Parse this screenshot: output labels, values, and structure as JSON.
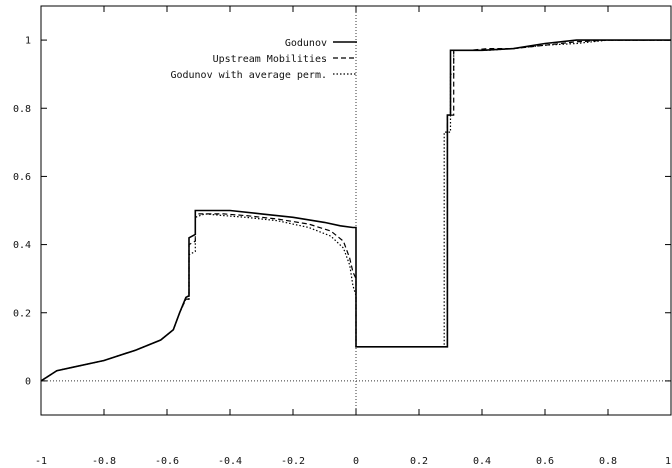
{
  "chart_data": {
    "type": "line",
    "title": "",
    "xlabel": "",
    "ylabel": "",
    "xlim": [
      -1,
      1
    ],
    "ylim": [
      -0.1,
      1.1
    ],
    "xticks": [
      -1,
      -0.8,
      -0.6,
      -0.4,
      -0.2,
      0,
      0.2,
      0.4,
      0.6,
      0.8,
      1
    ],
    "xtick_labels": [
      "-1",
      "-0.8",
      "-0.6",
      "-0.4",
      "-0.2",
      "0",
      "0.2",
      "0.4",
      "0.6",
      "0.8",
      "1"
    ],
    "yticks": [
      0,
      0.2,
      0.4,
      0.6,
      0.8,
      1
    ],
    "ytick_labels": [
      "0",
      "0.2",
      "0.4",
      "0.6",
      "0.8",
      "1"
    ],
    "grid": false,
    "zero_lines": true,
    "legend_position": "top-left inside",
    "series": [
      {
        "name": "Godunov",
        "style": "solid",
        "points": [
          [
            -1,
            0
          ],
          [
            -0.95,
            0.03
          ],
          [
            -0.9,
            0.04
          ],
          [
            -0.8,
            0.06
          ],
          [
            -0.7,
            0.09
          ],
          [
            -0.62,
            0.12
          ],
          [
            -0.58,
            0.15
          ],
          [
            -0.56,
            0.2
          ],
          [
            -0.54,
            0.245
          ],
          [
            -0.53,
            0.25
          ],
          [
            -0.53,
            0.42
          ],
          [
            -0.51,
            0.43
          ],
          [
            -0.51,
            0.5
          ],
          [
            -0.45,
            0.5
          ],
          [
            -0.4,
            0.5
          ],
          [
            -0.3,
            0.49
          ],
          [
            -0.2,
            0.48
          ],
          [
            -0.1,
            0.465
          ],
          [
            -0.05,
            0.455
          ],
          [
            -0.01,
            0.45
          ],
          [
            0,
            0.45
          ],
          [
            0,
            0.1
          ],
          [
            0.1,
            0.1
          ],
          [
            0.27,
            0.1
          ],
          [
            0.29,
            0.1
          ],
          [
            0.29,
            0.78
          ],
          [
            0.3,
            0.78
          ],
          [
            0.3,
            0.97
          ],
          [
            0.35,
            0.97
          ],
          [
            0.4,
            0.97
          ],
          [
            0.5,
            0.975
          ],
          [
            0.6,
            0.99
          ],
          [
            0.7,
            1.0
          ],
          [
            0.8,
            1.0
          ],
          [
            0.9,
            1.0
          ],
          [
            1,
            1.0
          ]
        ]
      },
      {
        "name": "Upstream Mobilities",
        "style": "dashed",
        "points": [
          [
            -1,
            0
          ],
          [
            -0.95,
            0.03
          ],
          [
            -0.9,
            0.04
          ],
          [
            -0.8,
            0.06
          ],
          [
            -0.7,
            0.09
          ],
          [
            -0.62,
            0.12
          ],
          [
            -0.58,
            0.15
          ],
          [
            -0.56,
            0.2
          ],
          [
            -0.54,
            0.24
          ],
          [
            -0.53,
            0.24
          ],
          [
            -0.53,
            0.4
          ],
          [
            -0.51,
            0.41
          ],
          [
            -0.51,
            0.49
          ],
          [
            -0.48,
            0.49
          ],
          [
            -0.42,
            0.49
          ],
          [
            -0.35,
            0.485
          ],
          [
            -0.25,
            0.475
          ],
          [
            -0.15,
            0.46
          ],
          [
            -0.08,
            0.44
          ],
          [
            -0.04,
            0.41
          ],
          [
            -0.02,
            0.36
          ],
          [
            -0.01,
            0.32
          ],
          [
            0,
            0.3
          ],
          [
            0,
            0.1
          ],
          [
            0.29,
            0.1
          ],
          [
            0.29,
            0.78
          ],
          [
            0.31,
            0.78
          ],
          [
            0.31,
            0.97
          ],
          [
            0.36,
            0.97
          ],
          [
            0.42,
            0.975
          ],
          [
            0.5,
            0.975
          ],
          [
            0.6,
            0.985
          ],
          [
            0.7,
            0.995
          ],
          [
            0.8,
            1.0
          ],
          [
            1,
            1.0
          ]
        ]
      },
      {
        "name": "Godunov with average perm.",
        "style": "dotted",
        "points": [
          [
            -1,
            0
          ],
          [
            -0.95,
            0.03
          ],
          [
            -0.9,
            0.04
          ],
          [
            -0.8,
            0.06
          ],
          [
            -0.7,
            0.09
          ],
          [
            -0.62,
            0.12
          ],
          [
            -0.58,
            0.15
          ],
          [
            -0.56,
            0.2
          ],
          [
            -0.54,
            0.24
          ],
          [
            -0.53,
            0.24
          ],
          [
            -0.53,
            0.37
          ],
          [
            -0.51,
            0.38
          ],
          [
            -0.51,
            0.48
          ],
          [
            -0.48,
            0.49
          ],
          [
            -0.42,
            0.485
          ],
          [
            -0.35,
            0.48
          ],
          [
            -0.25,
            0.47
          ],
          [
            -0.15,
            0.45
          ],
          [
            -0.08,
            0.425
          ],
          [
            -0.04,
            0.39
          ],
          [
            -0.02,
            0.34
          ],
          [
            -0.01,
            0.28
          ],
          [
            0,
            0.25
          ],
          [
            0,
            0.1
          ],
          [
            0.28,
            0.1
          ],
          [
            0.28,
            0.73
          ],
          [
            0.3,
            0.73
          ],
          [
            0.3,
            0.9
          ],
          [
            0.31,
            0.9
          ],
          [
            0.31,
            0.97
          ],
          [
            0.36,
            0.97
          ],
          [
            0.42,
            0.97
          ],
          [
            0.5,
            0.975
          ],
          [
            0.6,
            0.985
          ],
          [
            0.7,
            0.99
          ],
          [
            0.8,
            1.0
          ],
          [
            1,
            1.0
          ]
        ]
      }
    ]
  }
}
